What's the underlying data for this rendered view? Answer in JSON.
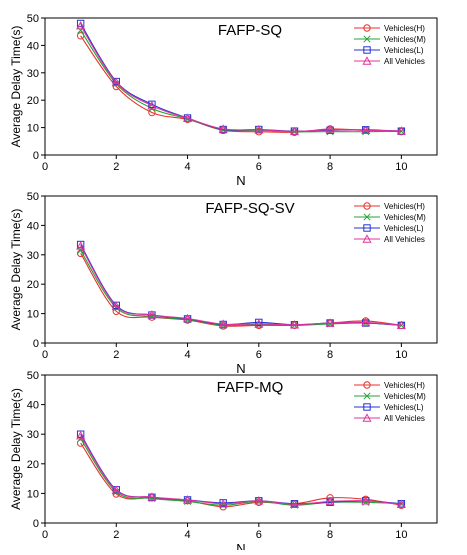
{
  "colors": {
    "Vehicles(H)": "#e8322b",
    "Vehicles(M)": "#27a13a",
    "Vehicles(L)": "#2433d6",
    "All Vehicles": "#e0339a"
  },
  "chart_data": [
    {
      "type": "line",
      "title": "FAFP-SQ",
      "xlabel": "N",
      "ylabel": "Average Delay Time(s)",
      "xlim": [
        0,
        11
      ],
      "ylim": [
        0,
        50
      ],
      "xticks": [
        0,
        2,
        4,
        6,
        8,
        10
      ],
      "yticks": [
        0,
        10,
        20,
        30,
        40,
        50
      ],
      "x": [
        1,
        2,
        3,
        4,
        5,
        6,
        7,
        8,
        9,
        10
      ],
      "series": [
        {
          "name": "Vehicles(H)",
          "marker": "circle",
          "values": [
            43.5,
            25.0,
            15.5,
            13.0,
            9.0,
            8.5,
            8.3,
            9.5,
            9.0,
            8.5
          ]
        },
        {
          "name": "Vehicles(M)",
          "marker": "x",
          "values": [
            45.5,
            26.0,
            17.0,
            13.2,
            9.2,
            9.0,
            8.5,
            8.5,
            8.5,
            8.7
          ]
        },
        {
          "name": "Vehicles(L)",
          "marker": "square",
          "values": [
            48.0,
            26.8,
            18.5,
            13.5,
            9.3,
            9.3,
            8.7,
            9.0,
            9.2,
            8.7
          ]
        },
        {
          "name": "All Vehicles",
          "marker": "triangle",
          "values": [
            47.2,
            26.5,
            18.0,
            13.4,
            9.5,
            9.2,
            8.6,
            9.2,
            9.0,
            8.8
          ]
        }
      ],
      "legend": "top-right",
      "grid": false
    },
    {
      "type": "line",
      "title": "FAFP-SQ-SV",
      "xlabel": "N",
      "ylabel": "Average Delay Time(s)",
      "xlim": [
        0,
        11
      ],
      "ylim": [
        0,
        50
      ],
      "xticks": [
        0,
        2,
        4,
        6,
        8,
        10
      ],
      "yticks": [
        0,
        10,
        20,
        30,
        40,
        50
      ],
      "x": [
        1,
        2,
        3,
        4,
        5,
        6,
        7,
        8,
        9,
        10
      ],
      "series": [
        {
          "name": "Vehicles(H)",
          "marker": "circle",
          "values": [
            30.5,
            10.8,
            8.8,
            7.8,
            5.8,
            6.0,
            6.0,
            6.8,
            7.5,
            6.0
          ]
        },
        {
          "name": "Vehicles(M)",
          "marker": "x",
          "values": [
            31.5,
            12.0,
            9.0,
            8.0,
            6.0,
            6.2,
            6.0,
            6.5,
            6.8,
            6.0
          ]
        },
        {
          "name": "Vehicles(L)",
          "marker": "square",
          "values": [
            33.5,
            12.8,
            9.5,
            8.2,
            6.3,
            7.0,
            6.2,
            6.8,
            6.8,
            6.0
          ]
        },
        {
          "name": "All Vehicles",
          "marker": "triangle",
          "values": [
            33.0,
            12.5,
            9.6,
            8.3,
            6.4,
            6.5,
            6.2,
            6.8,
            7.0,
            6.0
          ]
        }
      ],
      "legend": "top-right",
      "grid": false
    },
    {
      "type": "line",
      "title": "FAFP-MQ",
      "xlabel": "N",
      "ylabel": "Average Delay Time(s)",
      "xlim": [
        0,
        11
      ],
      "ylim": [
        0,
        50
      ],
      "xticks": [
        0,
        2,
        4,
        6,
        8,
        10
      ],
      "yticks": [
        0,
        10,
        20,
        30,
        40,
        50
      ],
      "x": [
        1,
        2,
        3,
        4,
        5,
        6,
        7,
        8,
        9,
        10
      ],
      "series": [
        {
          "name": "Vehicles(H)",
          "marker": "circle",
          "values": [
            27.0,
            9.8,
            8.5,
            7.5,
            5.5,
            7.0,
            6.5,
            8.5,
            8.0,
            6.0
          ]
        },
        {
          "name": "Vehicles(M)",
          "marker": "x",
          "values": [
            28.5,
            10.5,
            8.3,
            7.3,
            6.0,
            7.3,
            6.0,
            7.0,
            7.0,
            6.5
          ]
        },
        {
          "name": "Vehicles(L)",
          "marker": "square",
          "values": [
            30.0,
            11.2,
            8.7,
            7.8,
            6.8,
            7.5,
            6.5,
            7.0,
            7.5,
            6.5
          ]
        },
        {
          "name": "All Vehicles",
          "marker": "triangle",
          "values": [
            29.5,
            11.0,
            8.8,
            7.8,
            6.5,
            7.5,
            6.3,
            7.3,
            7.5,
            6.3
          ]
        }
      ],
      "legend": "top-right",
      "grid": false
    }
  ]
}
